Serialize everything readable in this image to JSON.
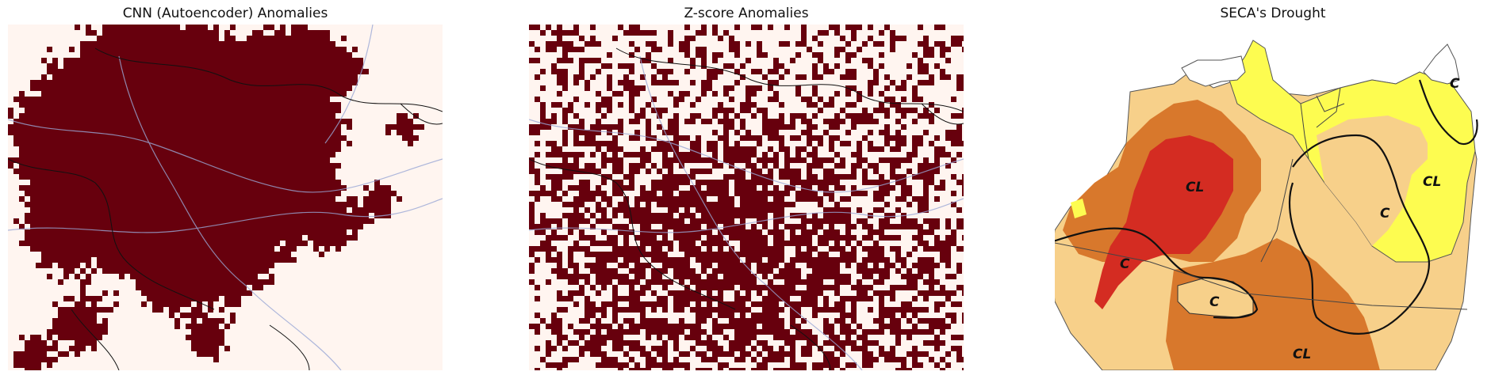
{
  "panels": [
    {
      "title": "CNN (Autoencoder) Anomalies",
      "type": "binary-anomaly-grid",
      "anomaly_color": "#67000d",
      "background_color": "#fff5f0",
      "anomaly_fraction_approx": 0.45
    },
    {
      "title": "Z-score Anomalies",
      "type": "binary-anomaly-grid",
      "anomaly_color": "#67000d",
      "background_color": "#fff5f0",
      "anomaly_fraction_approx": 0.5
    },
    {
      "title": "SECA's Drought",
      "type": "drought-class-map",
      "class_colors": {
        "exceptional": "#d42c22",
        "severe": "#d8782c",
        "moderate": "#f7d08a",
        "abnormally_dry": "#fdfc50",
        "none": "#ffffff"
      },
      "region_labels": [
        "C",
        "CL",
        "C",
        "CL",
        "C",
        "C",
        "CL"
      ]
    }
  ],
  "colors": {
    "river": "#9aa8d6",
    "border": "#111111"
  }
}
